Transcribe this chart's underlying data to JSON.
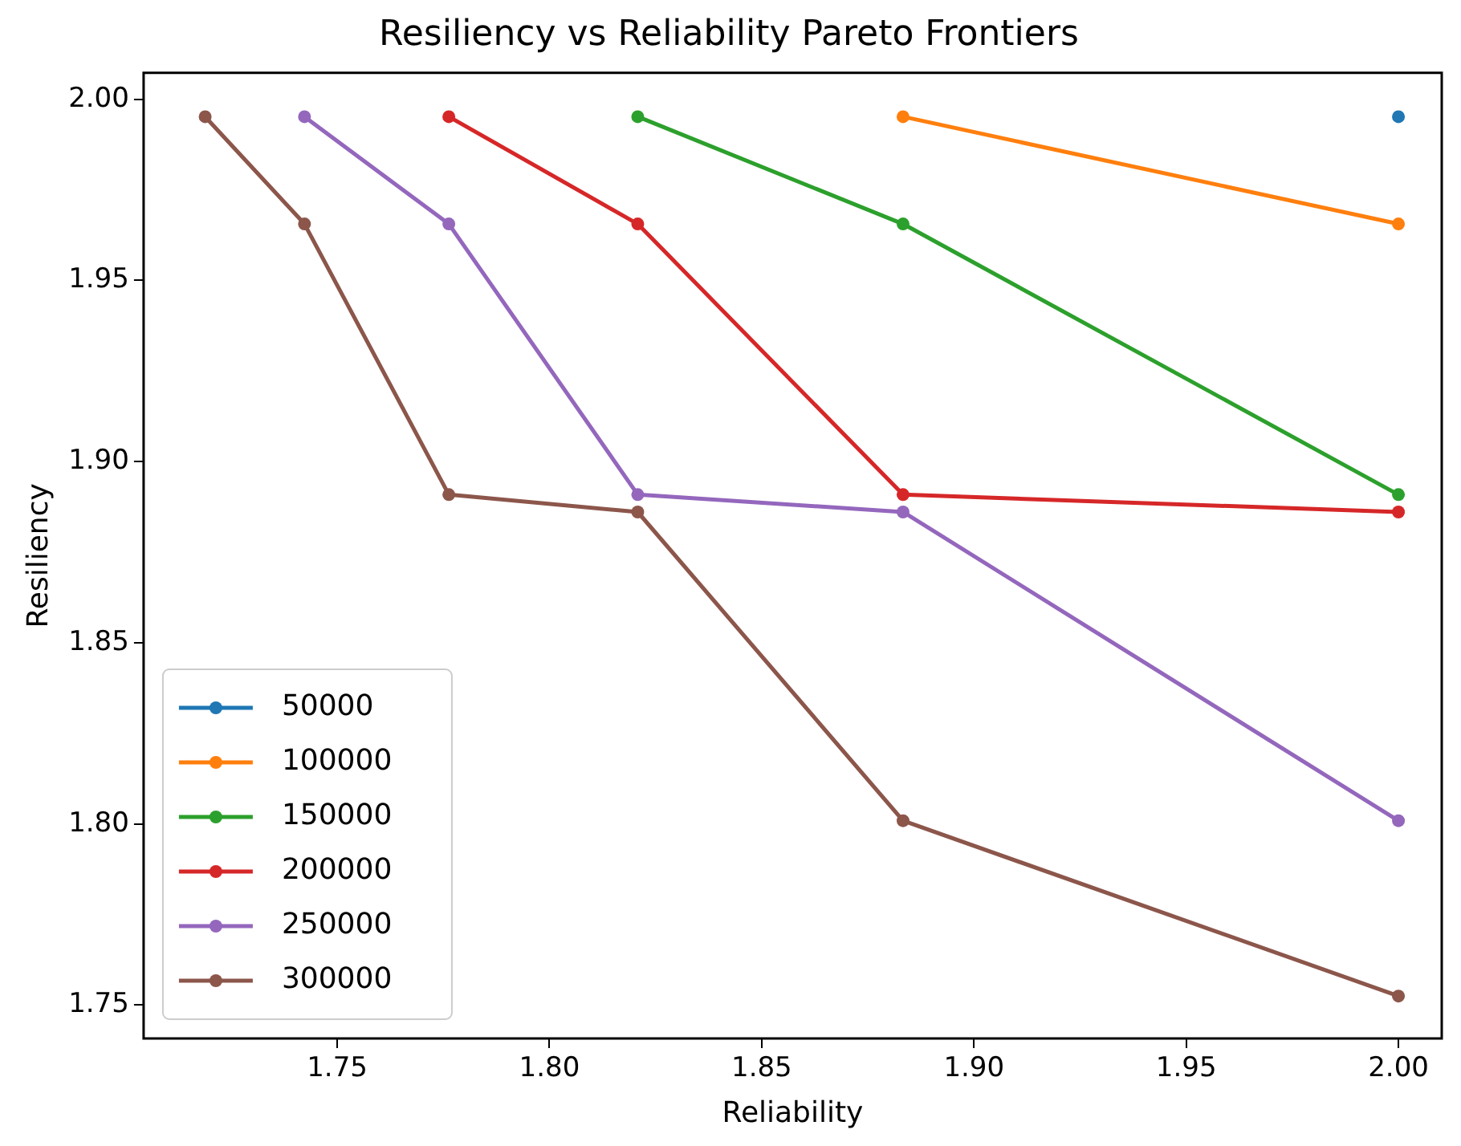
{
  "chart_data": {
    "type": "line",
    "title": "Resiliency vs Reliability Pareto Frontiers",
    "xlabel": "Reliability",
    "ylabel": "Resiliency",
    "xlim": [
      1.7044,
      2.0102
    ],
    "xticks": [
      1.75,
      {
        "value": 1.8,
        "label": "1.80"
      },
      1.85,
      {
        "value": 1.9,
        "label": "1.90"
      },
      1.95,
      {
        "value": 2.0,
        "label": "2.00"
      }
    ],
    "ylim": [
      1.7408,
      2.0073
    ],
    "yticks": [
      1.75,
      {
        "value": 1.8,
        "label": "1.80"
      },
      1.85,
      {
        "value": 1.9,
        "label": "1.90"
      },
      1.95,
      {
        "value": 2.0,
        "label": "2.00"
      }
    ],
    "grid": false,
    "legend": "bottom left",
    "marker": "circle",
    "line_style": "solid",
    "series": [
      {
        "name": "50000",
        "color": "#1f77b4",
        "x": [
          2.0
        ],
        "values": [
          1.9952
        ]
      },
      {
        "name": "100000",
        "color": "#ff7f0e",
        "x": [
          1.8833,
          2.0
        ],
        "values": [
          1.9952,
          1.9656
        ]
      },
      {
        "name": "150000",
        "color": "#2ca02c",
        "x": [
          1.8208,
          1.8833,
          2.0
        ],
        "values": [
          1.9952,
          1.9656,
          1.8909
        ]
      },
      {
        "name": "200000",
        "color": "#d62728",
        "x": [
          1.7763,
          1.8208,
          1.8833,
          2.0
        ],
        "values": [
          1.9952,
          1.9656,
          1.8909,
          1.8861
        ]
      },
      {
        "name": "250000",
        "color": "#9467bd",
        "x": [
          1.7423,
          1.7763,
          1.8208,
          1.8833,
          2.0
        ],
        "values": [
          1.9952,
          1.9656,
          1.8909,
          1.8861,
          1.8009
        ]
      },
      {
        "name": "300000",
        "color": "#8c564b",
        "x": [
          1.7189,
          1.7423,
          1.7763,
          1.8208,
          1.8833,
          2.0
        ],
        "values": [
          1.9952,
          1.9656,
          1.8909,
          1.8861,
          1.8009,
          1.7525
        ]
      }
    ]
  }
}
